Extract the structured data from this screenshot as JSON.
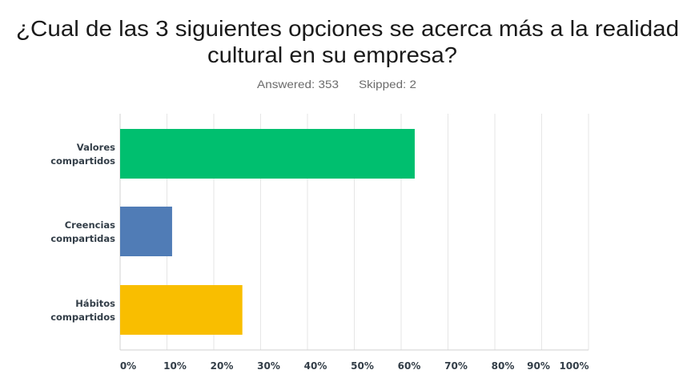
{
  "chart_data": {
    "type": "bar",
    "orientation": "horizontal",
    "title_lines": [
      "¿Cual de las 3 siguientes opciones se acerca más a la realidad",
      "cultural en su empresa?"
    ],
    "answered_label": "Answered: 353",
    "skipped_label": "Skipped: 2",
    "categories": [
      [
        "Valores",
        "compartidos"
      ],
      [
        "Creencias",
        "compartidas"
      ],
      [
        "Hábitos",
        "compartidos"
      ]
    ],
    "values": [
      62.9,
      11.1,
      26.1
    ],
    "colors": [
      "#00bf6f",
      "#507cb6",
      "#f9be00"
    ],
    "xlim": [
      0,
      100
    ],
    "x_ticks": [
      "0%",
      "10%",
      "20%",
      "30%",
      "40%",
      "50%",
      "60%",
      "70%",
      "80%",
      "90%",
      "100%"
    ],
    "grid": true,
    "unit": "%"
  }
}
